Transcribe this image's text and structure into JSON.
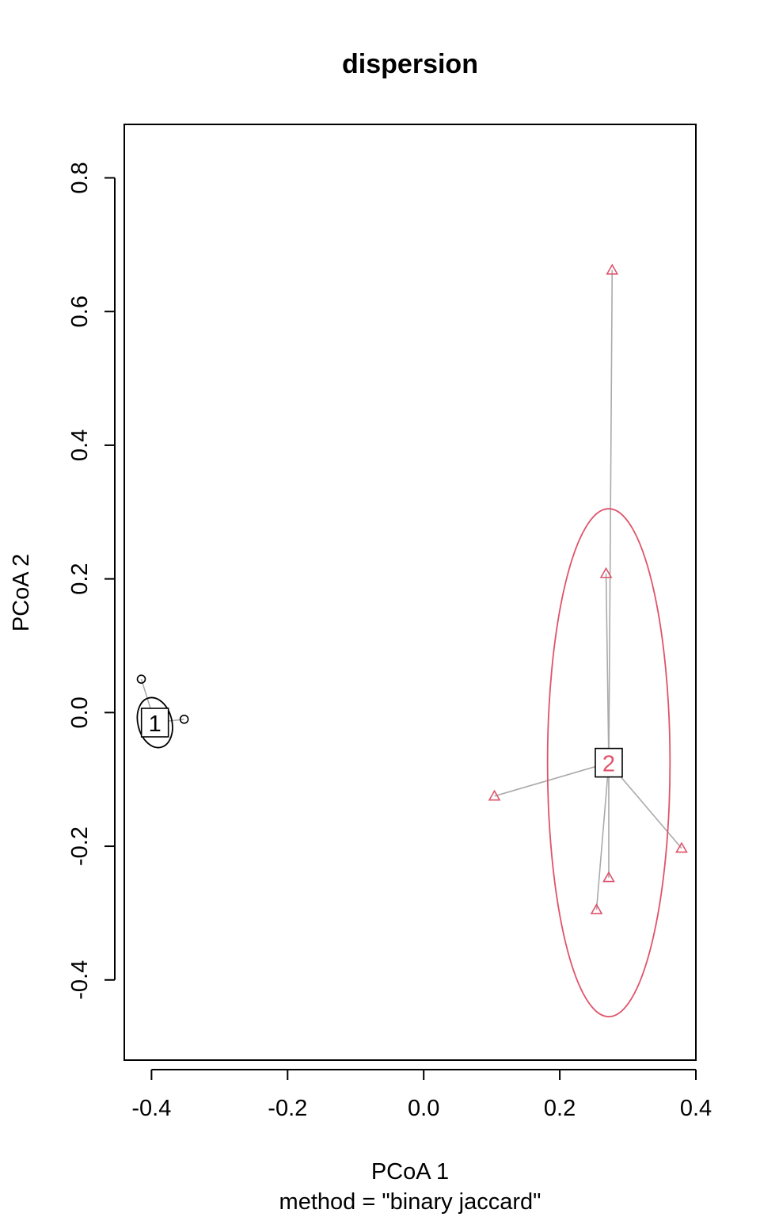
{
  "chart_data": {
    "type": "scatter",
    "title": "dispersion",
    "xlabel": "PCoA 1",
    "ylabel": "PCoA 2",
    "subtitle": "method = \"binary jaccard\"",
    "xlim": [
      -0.44,
      0.4
    ],
    "ylim": [
      -0.52,
      0.88
    ],
    "xticks": [
      -0.4,
      -0.2,
      0.0,
      0.2,
      0.4
    ],
    "xtick_labels": [
      "-0.4",
      "-0.2",
      "0.0",
      "0.2",
      "0.4"
    ],
    "yticks": [
      -0.4,
      -0.2,
      0.0,
      0.2,
      0.4,
      0.6,
      0.8
    ],
    "ytick_labels": [
      "-0.4",
      "-0.2",
      "0.0",
      "0.2",
      "0.4",
      "0.6",
      "0.8"
    ],
    "grid": false,
    "series": [
      {
        "name": "1",
        "color": "#000000",
        "marker": "circle",
        "centroid": [
          -0.395,
          -0.015
        ],
        "ellipse": {
          "rx": 0.025,
          "ry": 0.038,
          "rotation": -14
        },
        "points": [
          [
            -0.415,
            0.05
          ],
          [
            -0.352,
            -0.01
          ]
        ]
      },
      {
        "name": "2",
        "color": "#DF536B",
        "marker": "triangle",
        "centroid": [
          0.272,
          -0.075
        ],
        "ellipse": {
          "rx": 0.09,
          "ry": 0.38,
          "rotation": 0
        },
        "points": [
          [
            0.277,
            0.662
          ],
          [
            0.268,
            0.208
          ],
          [
            0.104,
            -0.125
          ],
          [
            0.379,
            -0.203
          ],
          [
            0.272,
            -0.247
          ],
          [
            0.254,
            -0.295
          ]
        ]
      }
    ]
  }
}
